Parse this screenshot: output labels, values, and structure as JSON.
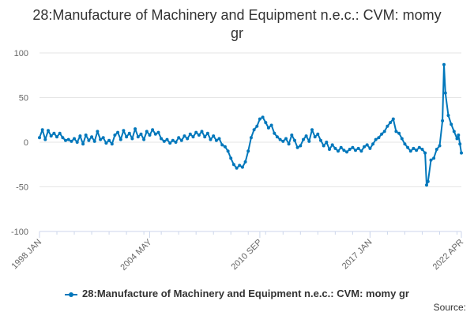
{
  "chart_data": {
    "type": "line",
    "title": "28:Manufacture of Machinery and Equipment n.e.c.: CVM: momy gr",
    "xlabel": "",
    "ylabel": "",
    "x_tick_labels": [
      "1998 JAN",
      "2004 MAY",
      "2010 SEP",
      "2017 JAN",
      "2022 APR"
    ],
    "x_range": [
      "1998 JAN",
      "2022 APR"
    ],
    "ylim": [
      -100,
      100
    ],
    "y_ticks": [
      -100,
      -50,
      0,
      50,
      100
    ],
    "grid": true,
    "legend_position": "bottom",
    "series": [
      {
        "name": "28:Manufacture of Machinery and Equipment n.e.c.: CVM: momy gr",
        "color": "#0077bb",
        "points": [
          [
            "1998 JAN",
            5
          ],
          [
            "1998 MAR",
            14
          ],
          [
            "1998 MAY",
            3
          ],
          [
            "1998 JUL",
            13
          ],
          [
            "1998 SEP",
            7
          ],
          [
            "1998 NOV",
            10
          ],
          [
            "1999 JAN",
            6
          ],
          [
            "1999 MAR",
            10
          ],
          [
            "1999 MAY",
            5
          ],
          [
            "1999 JUL",
            2
          ],
          [
            "1999 SEP",
            3
          ],
          [
            "1999 NOV",
            1
          ],
          [
            "2000 JAN",
            4
          ],
          [
            "2000 MAR",
            0
          ],
          [
            "2000 MAY",
            7
          ],
          [
            "2000 JUL",
            -2
          ],
          [
            "2000 SEP",
            8
          ],
          [
            "2000 NOV",
            2
          ],
          [
            "2001 JAN",
            6
          ],
          [
            "2001 MAR",
            1
          ],
          [
            "2001 MAY",
            12
          ],
          [
            "2001 JUL",
            3
          ],
          [
            "2001 SEP",
            5
          ],
          [
            "2001 NOV",
            -1
          ],
          [
            "2002 JAN",
            2
          ],
          [
            "2002 MAR",
            -2
          ],
          [
            "2002 MAY",
            8
          ],
          [
            "2002 JUL",
            11
          ],
          [
            "2002 SEP",
            3
          ],
          [
            "2002 NOV",
            13
          ],
          [
            "2003 JAN",
            6
          ],
          [
            "2003 MAR",
            10
          ],
          [
            "2003 MAY",
            4
          ],
          [
            "2003 JUL",
            15
          ],
          [
            "2003 SEP",
            6
          ],
          [
            "2003 NOV",
            9
          ],
          [
            "2004 JAN",
            3
          ],
          [
            "2004 MAR",
            12
          ],
          [
            "2004 MAY",
            8
          ],
          [
            "2004 JUL",
            14
          ],
          [
            "2004 SEP",
            9
          ],
          [
            "2004 NOV",
            11
          ],
          [
            "2005 JAN",
            4
          ],
          [
            "2005 MAR",
            1
          ],
          [
            "2005 MAY",
            3
          ],
          [
            "2005 JUL",
            -1
          ],
          [
            "2005 SEP",
            2
          ],
          [
            "2005 NOV",
            0
          ],
          [
            "2006 JAN",
            5
          ],
          [
            "2006 MAR",
            2
          ],
          [
            "2006 MAY",
            7
          ],
          [
            "2006 JUL",
            4
          ],
          [
            "2006 SEP",
            9
          ],
          [
            "2006 NOV",
            6
          ],
          [
            "2007 JAN",
            11
          ],
          [
            "2007 MAR",
            8
          ],
          [
            "2007 MAY",
            12
          ],
          [
            "2007 JUL",
            6
          ],
          [
            "2007 SEP",
            10
          ],
          [
            "2007 NOV",
            3
          ],
          [
            "2008 JAN",
            7
          ],
          [
            "2008 MAR",
            2
          ],
          [
            "2008 MAY",
            4
          ],
          [
            "2008 JUL",
            -3
          ],
          [
            "2008 SEP",
            -5
          ],
          [
            "2008 NOV",
            -10
          ],
          [
            "2009 JAN",
            -18
          ],
          [
            "2009 MAR",
            -25
          ],
          [
            "2009 MAY",
            -29
          ],
          [
            "2009 JUL",
            -26
          ],
          [
            "2009 SEP",
            -28
          ],
          [
            "2009 NOV",
            -22
          ],
          [
            "2010 JAN",
            -10
          ],
          [
            "2010 MAR",
            5
          ],
          [
            "2010 MAY",
            14
          ],
          [
            "2010 JUL",
            18
          ],
          [
            "2010 SEP",
            26
          ],
          [
            "2010 NOV",
            28
          ],
          [
            "2011 JAN",
            22
          ],
          [
            "2011 MAR",
            16
          ],
          [
            "2011 MAY",
            19
          ],
          [
            "2011 JUL",
            10
          ],
          [
            "2011 SEP",
            6
          ],
          [
            "2011 NOV",
            3
          ],
          [
            "2012 JAN",
            1
          ],
          [
            "2012 MAR",
            4
          ],
          [
            "2012 MAY",
            -2
          ],
          [
            "2012 JUL",
            8
          ],
          [
            "2012 SEP",
            2
          ],
          [
            "2012 NOV",
            -6
          ],
          [
            "2013 JAN",
            -4
          ],
          [
            "2013 MAR",
            3
          ],
          [
            "2013 MAY",
            7
          ],
          [
            "2013 JUL",
            1
          ],
          [
            "2013 SEP",
            14
          ],
          [
            "2013 NOV",
            6
          ],
          [
            "2014 JAN",
            9
          ],
          [
            "2014 MAR",
            2
          ],
          [
            "2014 MAY",
            -4
          ],
          [
            "2014 JUL",
            0
          ],
          [
            "2014 SEP",
            -8
          ],
          [
            "2014 NOV",
            -3
          ],
          [
            "2015 JAN",
            -7
          ],
          [
            "2015 MAR",
            -10
          ],
          [
            "2015 MAY",
            -6
          ],
          [
            "2015 JUL",
            -9
          ],
          [
            "2015 SEP",
            -11
          ],
          [
            "2015 NOV",
            -8
          ],
          [
            "2016 JAN",
            -6
          ],
          [
            "2016 MAR",
            -9
          ],
          [
            "2016 MAY",
            -7
          ],
          [
            "2016 JUL",
            -10
          ],
          [
            "2016 SEP",
            -5
          ],
          [
            "2016 NOV",
            -3
          ],
          [
            "2017 JAN",
            -7
          ],
          [
            "2017 MAR",
            -2
          ],
          [
            "2017 MAY",
            3
          ],
          [
            "2017 JUL",
            5
          ],
          [
            "2017 SEP",
            9
          ],
          [
            "2017 NOV",
            12
          ],
          [
            "2018 JAN",
            18
          ],
          [
            "2018 MAR",
            22
          ],
          [
            "2018 MAY",
            26
          ],
          [
            "2018 JUL",
            12
          ],
          [
            "2018 SEP",
            10
          ],
          [
            "2018 NOV",
            4
          ],
          [
            "2019 JAN",
            -2
          ],
          [
            "2019 MAR",
            -6
          ],
          [
            "2019 MAY",
            -10
          ],
          [
            "2019 JUL",
            -7
          ],
          [
            "2019 SEP",
            -9
          ],
          [
            "2019 NOV",
            -6
          ],
          [
            "2020 JAN",
            -8
          ],
          [
            "2020 MAR",
            -12
          ],
          [
            "2020 APR",
            -48
          ],
          [
            "2020 MAY",
            -44
          ],
          [
            "2020 JUL",
            -20
          ],
          [
            "2020 SEP",
            -18
          ],
          [
            "2020 NOV",
            -8
          ],
          [
            "2021 JAN",
            -4
          ],
          [
            "2021 MAR",
            24
          ],
          [
            "2021 APR",
            87
          ],
          [
            "2021 MAY",
            55
          ],
          [
            "2021 JUL",
            30
          ],
          [
            "2021 SEP",
            20
          ],
          [
            "2021 NOV",
            12
          ],
          [
            "2022 JAN",
            4
          ],
          [
            "2022 FEB",
            8
          ],
          [
            "2022 MAR",
            -2
          ],
          [
            "2022 APR",
            -12
          ]
        ]
      }
    ]
  },
  "footer": {
    "source_label": "Source:"
  }
}
